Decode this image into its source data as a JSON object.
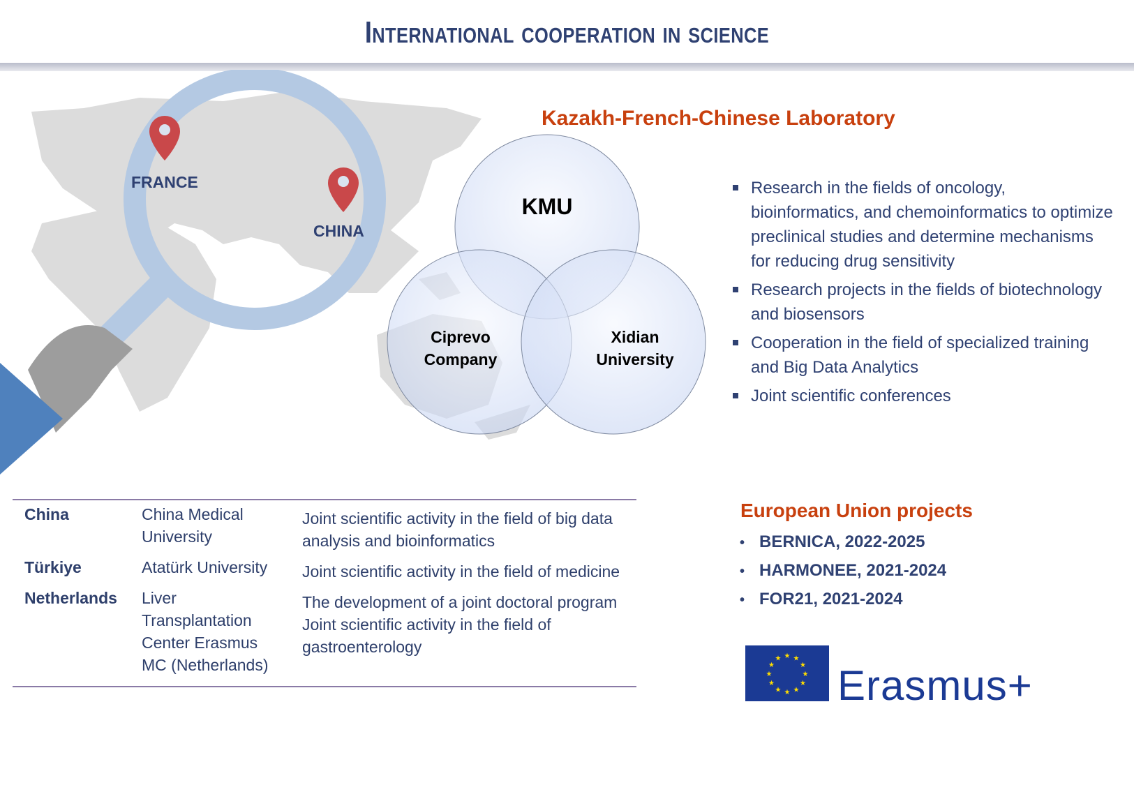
{
  "header": {
    "title": "International cooperation in science"
  },
  "map": {
    "pins": [
      {
        "label": "FRANCE"
      },
      {
        "label": "CHINA"
      }
    ],
    "pin_color": "#C9484A",
    "magnifier_color": "#B4C9E3"
  },
  "lab": {
    "title": "Kazakh-French-Chinese Laboratory",
    "partners": [
      "KMU",
      "Ciprevo Company",
      "Xidian University"
    ],
    "activities": [
      "Research in the fields of oncology, bioinformatics, and chemoinformatics to optimize preclinical studies and determine mechanisms for reducing drug sensitivity",
      "Research projects in the fields of biotechnology and biosensors",
      "Cooperation in the field of specialized training and Big Data Analytics",
      "Joint scientific conferences"
    ]
  },
  "table": {
    "rows": [
      {
        "country": "China",
        "partner": "China Medical University",
        "activity": "Joint scientific activity in the field of big data analysis and bioinformatics"
      },
      {
        "country": "Türkiye",
        "partner": "Atatürk University",
        "activity": "Joint scientific activity in the field of medicine"
      },
      {
        "country": "Netherlands",
        "partner": "Liver Transplantation Center Erasmus MC (Netherlands)",
        "activity": "The development of a joint doctoral program",
        "activity2": "Joint scientific activity in the field of gastroenterology"
      }
    ]
  },
  "eu": {
    "title": "European Union projects",
    "projects": [
      "BERNICA, 2022-2025",
      "HARMONEE, 2021-2024",
      "FOR21, 2021-2024"
    ],
    "logo_text": "Erasmus+"
  },
  "colors": {
    "title": "#2F4172",
    "accent": "#C8400E"
  }
}
